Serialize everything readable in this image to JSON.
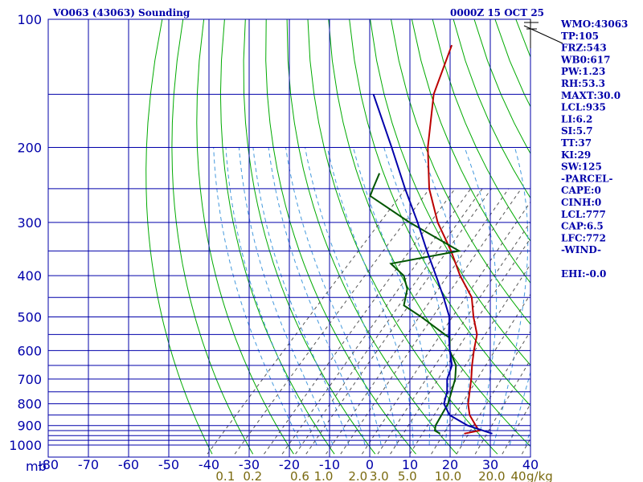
{
  "header": {
    "station": "VO063 (43063) Sounding",
    "time": "0000Z 15 OCT 25"
  },
  "indices": [
    "WMO:43063",
    "TP:105",
    "FRZ:543",
    "WB0:617",
    "PW:1.23",
    "RH:53.3",
    "MAXT:30.0",
    "LCL:935",
    "LI:6.2",
    "SI:5.7",
    "TT:37",
    "KI:29",
    "SW:125",
    "-PARCEL-",
    "CAPE:0",
    "CINH:0",
    "LCL:777",
    "CAP:6.5",
    "LFC:772",
    "-WIND-",
    "",
    "EHI:-0.0"
  ],
  "colors": {
    "grid": "#0000aa",
    "dry_adiabat": "#00aa00",
    "moist_adiabat": "#4499dd",
    "mixing_ratio": "#555555",
    "temperature": "#bb0000",
    "dewpoint": "#005500",
    "parcel": "#0000aa"
  },
  "chart_data": {
    "type": "line",
    "skewt": true,
    "pressure_unit_label": "mb",
    "mixing_ratio_unit_label": "g/kg",
    "pressure_labels": [
      100,
      200,
      300,
      400,
      500,
      600,
      700,
      800,
      900,
      1000
    ],
    "pressure_lines": [
      100,
      150,
      200,
      250,
      300,
      350,
      400,
      450,
      500,
      550,
      600,
      650,
      700,
      750,
      800,
      850,
      900,
      925,
      950,
      975,
      1000
    ],
    "temperature_ticks": [
      -80,
      -70,
      -60,
      -50,
      -40,
      -30,
      -20,
      -10,
      0,
      10,
      20,
      30,
      40
    ],
    "mixing_ratio_labels": [
      "0.1",
      "0.2",
      "0.6",
      "1.0",
      "2.0",
      "3.0",
      "5.0",
      "10.0",
      "20.0",
      "40"
    ],
    "mixing_ratio_values": [
      0.1,
      0.2,
      0.6,
      1.0,
      2.0,
      3.0,
      5.0,
      10.0,
      20.0,
      40.0
    ],
    "mixing_ratio_extra": [
      0.4,
      0.8,
      1.5,
      4.0,
      7.0,
      15.0,
      30.0
    ],
    "ylim": [
      1000,
      100
    ],
    "series": [
      {
        "key": "temperature",
        "points": [
          [
            940,
            18
          ],
          [
            925,
            21
          ],
          [
            900,
            19
          ],
          [
            850,
            15
          ],
          [
            800,
            12
          ],
          [
            700,
            7
          ],
          [
            650,
            4
          ],
          [
            600,
            1
          ],
          [
            550,
            -2
          ],
          [
            500,
            -7
          ],
          [
            450,
            -12
          ],
          [
            400,
            -20
          ],
          [
            350,
            -28
          ],
          [
            300,
            -38
          ],
          [
            250,
            -48
          ],
          [
            200,
            -58
          ],
          [
            150,
            -69
          ],
          [
            115,
            -76
          ]
        ]
      },
      {
        "key": "dewpoint",
        "points": [
          [
            940,
            12
          ],
          [
            925,
            10
          ],
          [
            900,
            9
          ],
          [
            850,
            8
          ],
          [
            800,
            7
          ],
          [
            700,
            3
          ],
          [
            650,
            0
          ],
          [
            600,
            -5
          ],
          [
            560,
            -8
          ],
          [
            550,
            -10
          ],
          [
            500,
            -20
          ],
          [
            470,
            -27
          ],
          [
            430,
            -30
          ],
          [
            400,
            -34
          ],
          [
            375,
            -40
          ],
          [
            350,
            -26
          ],
          [
            300,
            -45
          ],
          [
            260,
            -61
          ],
          [
            250,
            -62
          ],
          [
            230,
            -64
          ]
        ]
      },
      {
        "key": "parcel",
        "points": [
          [
            940,
            25
          ],
          [
            900,
            17
          ],
          [
            850,
            10
          ],
          [
            800,
            6
          ],
          [
            750,
            4
          ],
          [
            700,
            1
          ],
          [
            650,
            -1
          ],
          [
            600,
            -5
          ],
          [
            550,
            -9
          ],
          [
            500,
            -13
          ],
          [
            450,
            -19
          ],
          [
            400,
            -26
          ],
          [
            350,
            -34
          ],
          [
            300,
            -43
          ],
          [
            250,
            -54
          ],
          [
            200,
            -67
          ],
          [
            150,
            -84
          ]
        ]
      }
    ]
  }
}
